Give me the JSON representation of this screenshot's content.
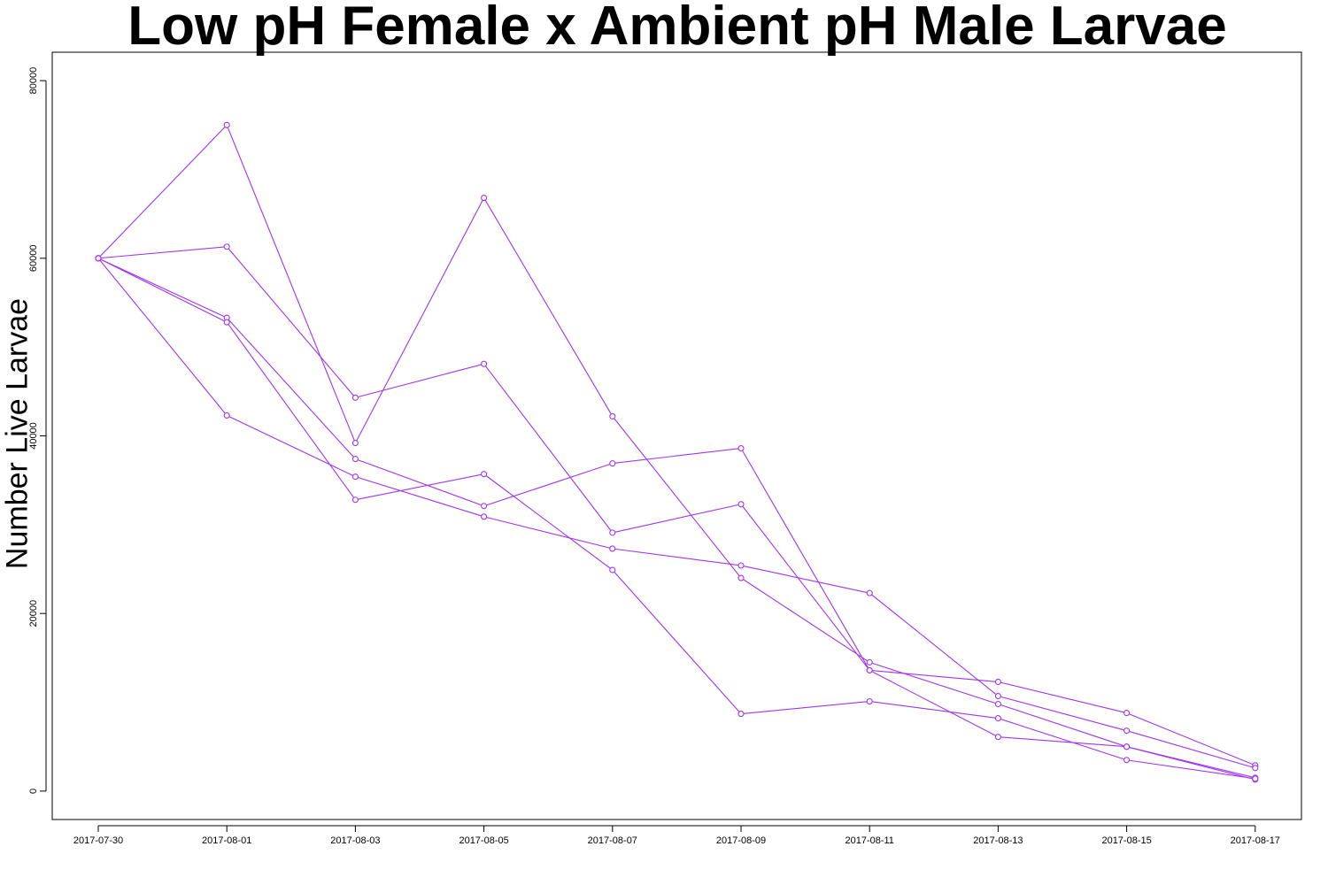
{
  "chart_data": {
    "type": "line",
    "title": "Low pH Female x Ambient pH Male Larvae",
    "ylabel": "Number Live Larvae",
    "xlabel": "",
    "x": [
      "2017-07-30",
      "2017-08-01",
      "2017-08-03",
      "2017-08-05",
      "2017-08-07",
      "2017-08-09",
      "2017-08-11",
      "2017-08-13",
      "2017-08-15",
      "2017-08-17"
    ],
    "yticks": [
      0,
      20000,
      40000,
      60000,
      80000
    ],
    "ylim": [
      -3200,
      83200
    ],
    "grid": false,
    "legend": "none",
    "color": "#a034f0",
    "series": [
      {
        "values": [
          60000,
          75000,
          39200,
          66800,
          42200,
          24000,
          14500,
          9800,
          5000,
          1300
        ]
      },
      {
        "values": [
          60000,
          61300,
          44300,
          48100,
          29100,
          32300,
          13600,
          12300,
          8800,
          2900
        ]
      },
      {
        "values": [
          60000,
          53300,
          37400,
          32100,
          36900,
          38600,
          13600,
          6100,
          5000,
          1500
        ]
      },
      {
        "values": [
          60000,
          52800,
          32800,
          35700,
          24900,
          8700,
          10100,
          8200,
          3500,
          1400
        ]
      },
      {
        "values": [
          60000,
          42300,
          35400,
          30900,
          27300,
          25400,
          22300,
          10700,
          6800,
          2600
        ]
      }
    ]
  }
}
